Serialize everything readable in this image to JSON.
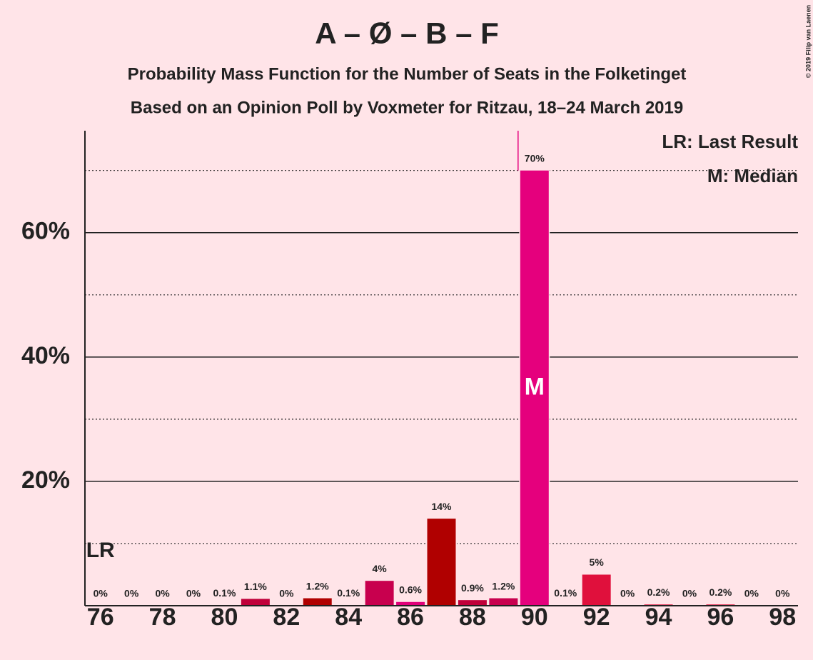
{
  "chart_data": {
    "type": "bar",
    "title": "A – Ø – B – F",
    "subtitle": [
      "Probability Mass Function for the Number of Seats in the Folketinget",
      "Based on an Opinion Poll by Voxmeter for Ritzau, 18–24 March 2019"
    ],
    "copyright": "© 2019 Filip van Laenen",
    "x": [
      76,
      77,
      78,
      79,
      80,
      81,
      82,
      83,
      84,
      85,
      86,
      87,
      88,
      89,
      90,
      91,
      92,
      93,
      94,
      95,
      96,
      97,
      98
    ],
    "values": [
      0,
      0,
      0,
      0,
      0.1,
      1.1,
      0,
      1.2,
      0.1,
      4,
      0.6,
      14,
      0.9,
      1.2,
      70,
      0.1,
      5,
      0,
      0.2,
      0,
      0.2,
      0,
      0
    ],
    "value_labels": [
      "0%",
      "0%",
      "0%",
      "0%",
      "0.1%",
      "1.1%",
      "0%",
      "1.2%",
      "0.1%",
      "4%",
      "0.6%",
      "14%",
      "0.9%",
      "1.2%",
      "70%",
      "0.1%",
      "5%",
      "0%",
      "0.2%",
      "0%",
      "0.2%",
      "0%",
      "0%"
    ],
    "colors": [
      "#c0003a",
      "#c0003a",
      "#c0003a",
      "#c0003a",
      "#c0003a",
      "#c0003a",
      "#c0003a",
      "#b00000",
      "#c8004e",
      "#c8004e",
      "#e0007a",
      "#b00000",
      "#c0003a",
      "#c8004e",
      "#e5007d",
      "#e5007d",
      "#e0103c",
      "#e0103c",
      "#e0103c",
      "#e0103c",
      "#e0103c",
      "#e0103c",
      "#e0103c"
    ],
    "xlim": [
      75.5,
      98.5
    ],
    "xticks": [
      76,
      78,
      80,
      82,
      84,
      86,
      88,
      90,
      92,
      94,
      96,
      98
    ],
    "ylim": [
      0,
      76.4
    ],
    "yticks": [
      {
        "value": 20,
        "label": "20%"
      },
      {
        "value": 40,
        "label": "40%"
      },
      {
        "value": 60,
        "label": "60%"
      }
    ],
    "minor_grid": [
      10,
      30,
      50,
      70
    ],
    "last_result": 76,
    "last_result_label": "LR",
    "median": 90,
    "median_label": "M",
    "legend": [
      "LR: Last Result",
      "M: Median"
    ]
  }
}
